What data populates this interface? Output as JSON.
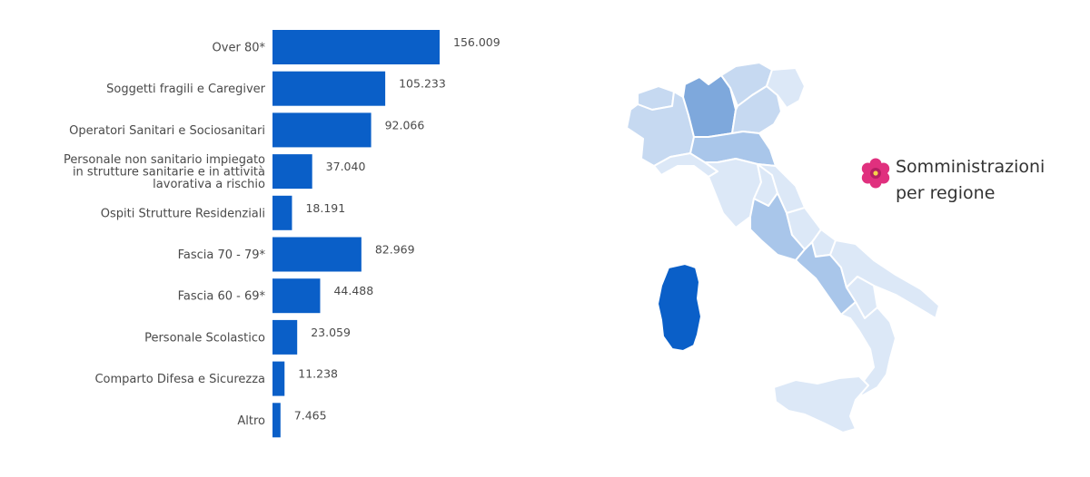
{
  "chart_data": {
    "type": "bar",
    "orientation": "horizontal",
    "categories": [
      [
        "Over 80*"
      ],
      [
        "Soggetti fragili e Caregiver"
      ],
      [
        "Operatori Sanitari e Sociosanitari"
      ],
      [
        "Personale non sanitario impiegato",
        "in strutture sanitarie e in attività",
        "lavorativa a rischio"
      ],
      [
        "Ospiti Strutture Residenziali"
      ],
      [
        "Fascia 70 - 79*"
      ],
      [
        "Fascia 60 - 69*"
      ],
      [
        "Personale Scolastico"
      ],
      [
        "Comparto Difesa e Sicurezza"
      ],
      [
        "Altro"
      ]
    ],
    "values": [
      156009,
      105233,
      92066,
      37040,
      18191,
      82969,
      44488,
      23059,
      11238,
      7465
    ],
    "value_labels": [
      "156.009",
      "105.233",
      "92.066",
      "37.040",
      "18.191",
      "82.969",
      "44.488",
      "23.059",
      "11.238",
      "7.465"
    ],
    "bar_color": "#0a5fc8",
    "title": "",
    "xlabel": "",
    "ylabel": ""
  },
  "map": {
    "legend_line1": "Somministrazioni",
    "legend_line2": "per regione",
    "colors": {
      "light": "#dce8f7",
      "mid": "#c6d9f1",
      "medium": "#a9c6ea",
      "strong": "#7ea8dc",
      "darkest": "#0a5fc8",
      "border": "#ffffff"
    },
    "flower_icon": "pink-primrose-flower-icon",
    "flower_color": "#e0307e"
  }
}
